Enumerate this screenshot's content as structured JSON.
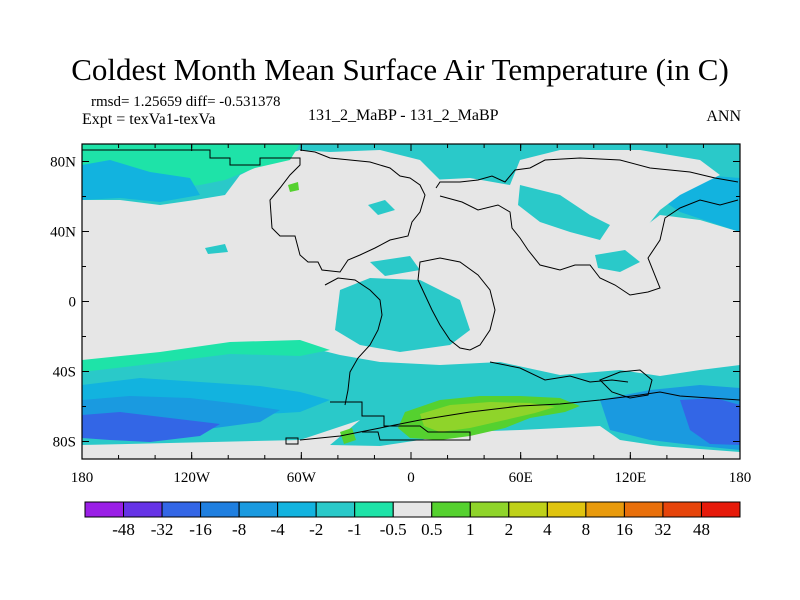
{
  "title": "Coldest Month Mean Surface Air Temperature (in C)",
  "stats": "rmsd= 1.25659  diff= -0.531378",
  "experiment": "Expt = texVa1-texVa",
  "runs": "131_2_MaBP - 131_2_MaBP",
  "season": "ANN",
  "map": {
    "x_ticks": [
      "180",
      "120W",
      "60W",
      "0",
      "60E",
      "120E",
      "180"
    ],
    "y_ticks": [
      "80N",
      "40N",
      "0",
      "40S",
      "80S"
    ],
    "lon_range": [
      -180,
      180
    ],
    "lat_range": [
      -90,
      90
    ]
  },
  "colorbar": {
    "labels": [
      "-48",
      "-32",
      "-16",
      "-8",
      "-4",
      "-2",
      "-1",
      "-0.5",
      "0.5",
      "1",
      "2",
      "4",
      "8",
      "16",
      "32",
      "48"
    ],
    "colors": [
      "#9a1fe6",
      "#6633e6",
      "#3366e6",
      "#1f7fe0",
      "#1a9ae0",
      "#12b3df",
      "#2ac9c9",
      "#1ee3a8",
      "#e6e6e6",
      "#55d12f",
      "#8fd42a",
      "#bfd119",
      "#e0c40f",
      "#e89a0c",
      "#e86f0a",
      "#e6440a",
      "#e61a0a"
    ]
  }
}
